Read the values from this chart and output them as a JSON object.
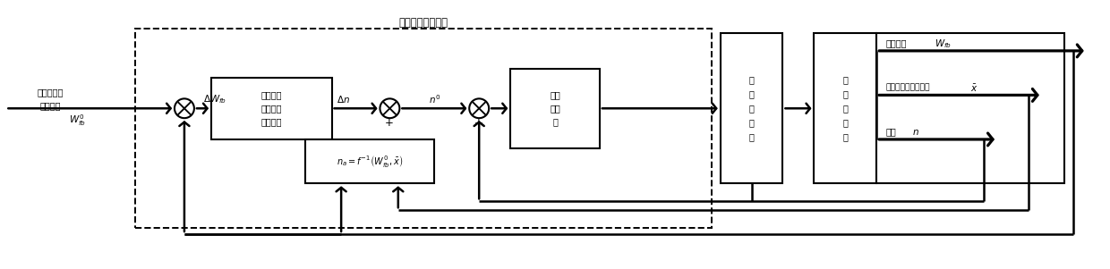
{
  "title": "电动燃油泵控制器",
  "bg_color": "#ffffff",
  "figsize": [
    12.4,
    3.01
  ],
  "dpi": 100,
  "input_line1": "发动机燃油",
  "input_line2": "需求指令",
  "wfb0_label": "$W_{fb}^{0}$",
  "delta_wfb_label": "$\\Delta W_{fb}$",
  "delta_n_label": "$\\Delta n$",
  "n0_label": "$n^0$",
  "block1_lines": [
    "电动燃油",
    "泵转速指",
    "令调节器"
  ],
  "block2_text": "$n_a=f^{-1}\\left(W_{fb}^{0},\\bar{x}\\right)$",
  "block3_lines": [
    "转速",
    "控制",
    "器"
  ],
  "block4_lines": [
    "功",
    "率",
    "变",
    "换",
    "器"
  ],
  "block5_lines": [
    "电",
    "动",
    "燃",
    "油",
    "泵"
  ],
  "out1_prefix": "燃油流量",
  "out1_math": "$W_{fb}$",
  "out2_prefix": "温度、压力、压差等",
  "out2_math": "$\\bar{x}$",
  "out3_prefix": "转速",
  "out3_math": "$n$",
  "plus_label": "+"
}
